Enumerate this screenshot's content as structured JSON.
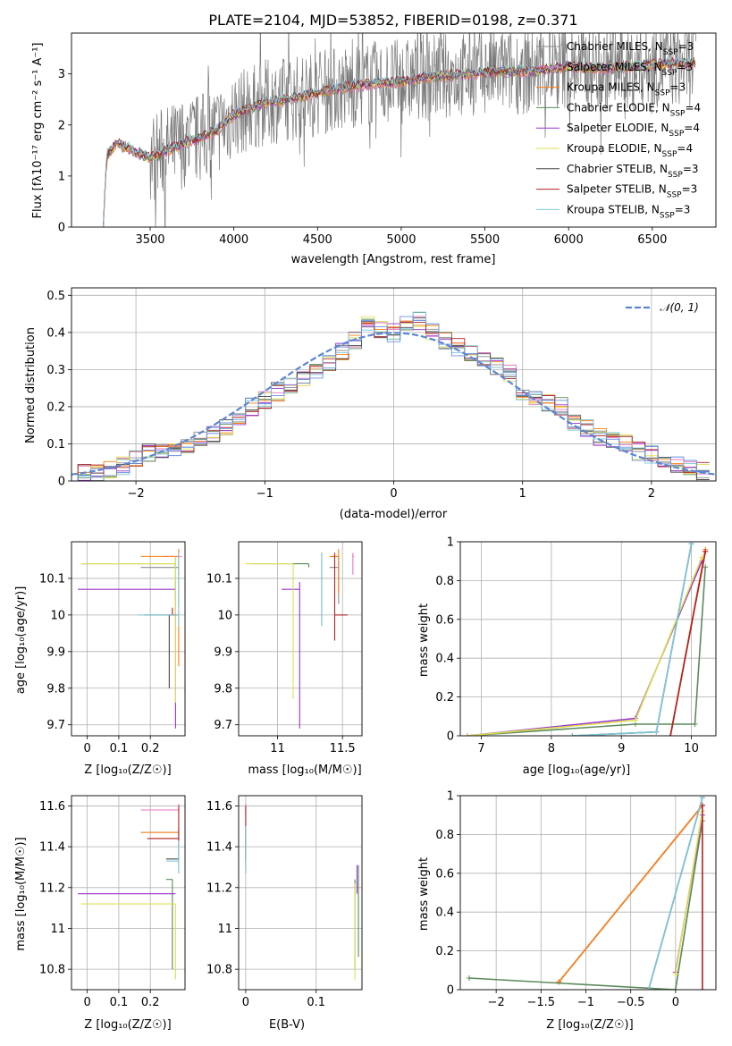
{
  "colors": {
    "chabrier_miles": "#8c8c8c",
    "salpeter_miles": "#e377c2",
    "kroupa_miles": "#ff7f0e",
    "chabrier_elodie": "#5b8a5b",
    "salpeter_elodie": "#9932cc",
    "kroupa_elodie": "#dde050",
    "chabrier_stelib": "#444444",
    "salpeter_stelib": "#b22222",
    "kroupa_stelib": "#7ec8dc",
    "normal_curve": "#5b86d4",
    "hist_blue": "#6b8fe0"
  },
  "chart_data": [
    {
      "id": "spectrum",
      "type": "line",
      "title": "PLATE=2104, MJD=53852, FIBERID=0198, z=0.371",
      "xlabel": "wavelength [Angstrom, rest frame]",
      "ylabel": "Flux [fλ10⁻¹⁷ erg cm⁻² s⁻¹ A⁻¹]",
      "xlim": [
        3030,
        6880
      ],
      "ylim": [
        0,
        3.8
      ],
      "xticks": [
        3500,
        4000,
        4500,
        5000,
        5500,
        6000,
        6500
      ],
      "yticks": [
        0,
        1,
        2,
        3
      ],
      "observed_trend": [
        [
          3220,
          0
        ],
        [
          3240,
          1.4
        ],
        [
          3300,
          1.65
        ],
        [
          3400,
          1.5
        ],
        [
          3500,
          1.35
        ],
        [
          3600,
          1.5
        ],
        [
          3700,
          1.65
        ],
        [
          3800,
          1.75
        ],
        [
          3900,
          1.9
        ],
        [
          4000,
          2.2
        ],
        [
          4200,
          2.45
        ],
        [
          4400,
          2.55
        ],
        [
          4600,
          2.7
        ],
        [
          4800,
          2.8
        ],
        [
          5000,
          2.85
        ],
        [
          5200,
          2.95
        ],
        [
          5400,
          3.0
        ],
        [
          5600,
          3.05
        ],
        [
          5800,
          3.05
        ],
        [
          6000,
          3.15
        ],
        [
          6200,
          3.1
        ],
        [
          6400,
          3.15
        ],
        [
          6600,
          3.2
        ],
        [
          6750,
          3.2
        ]
      ],
      "legend": [
        {
          "label": "Chabrier MILES, N_SSP=3",
          "color_key": "chabrier_miles"
        },
        {
          "label": "Salpeter MILES, N_SSP=3",
          "color_key": "salpeter_miles"
        },
        {
          "label": "Kroupa MILES, N_SSP=3",
          "color_key": "kroupa_miles"
        },
        {
          "label": "Chabrier ELODIE, N_SSP=4",
          "color_key": "chabrier_elodie"
        },
        {
          "label": "Salpeter ELODIE, N_SSP=4",
          "color_key": "salpeter_elodie"
        },
        {
          "label": "Kroupa ELODIE, N_SSP=4",
          "color_key": "kroupa_elodie"
        },
        {
          "label": "Chabrier STELIB, N_SSP=3",
          "color_key": "chabrier_stelib"
        },
        {
          "label": "Salpeter STELIB, N_SSP=3",
          "color_key": "salpeter_stelib"
        },
        {
          "label": "Kroupa STELIB, N_SSP=3",
          "color_key": "kroupa_stelib"
        }
      ],
      "legend_position": "upper right"
    },
    {
      "id": "residuals",
      "type": "line",
      "xlabel": "(data-model)/error",
      "ylabel": "Normed distribution",
      "xlim": [
        -2.5,
        2.5
      ],
      "ylim": [
        0,
        0.52
      ],
      "xticks": [
        -2,
        -1,
        0,
        1,
        2
      ],
      "yticks": [
        0.0,
        0.1,
        0.2,
        0.3,
        0.4,
        0.5
      ],
      "grid": true,
      "curve_label": "𝒩(0, 1)",
      "legend_position": "upper right",
      "histogram_x": [
        -2.4,
        -2.3,
        -2.2,
        -2.1,
        -2.0,
        -1.9,
        -1.8,
        -1.7,
        -1.6,
        -1.5,
        -1.4,
        -1.3,
        -1.2,
        -1.1,
        -1.0,
        -0.9,
        -0.8,
        -0.7,
        -0.6,
        -0.5,
        -0.4,
        -0.3,
        -0.2,
        -0.1,
        0.0,
        0.1,
        0.2,
        0.3,
        0.4,
        0.5,
        0.6,
        0.7,
        0.8,
        0.9,
        1.0,
        1.1,
        1.2,
        1.3,
        1.4,
        1.5,
        1.6,
        1.7,
        1.8,
        1.9,
        2.0,
        2.1,
        2.2,
        2.3,
        2.4
      ],
      "histogram_values": [
        0.02,
        0.025,
        0.03,
        0.04,
        0.06,
        0.075,
        0.08,
        0.09,
        0.1,
        0.115,
        0.125,
        0.14,
        0.17,
        0.2,
        0.22,
        0.24,
        0.26,
        0.28,
        0.3,
        0.32,
        0.35,
        0.38,
        0.42,
        0.41,
        0.4,
        0.42,
        0.43,
        0.4,
        0.38,
        0.36,
        0.34,
        0.33,
        0.31,
        0.29,
        0.24,
        0.22,
        0.21,
        0.2,
        0.16,
        0.14,
        0.12,
        0.11,
        0.1,
        0.08,
        0.07,
        0.055,
        0.045,
        0.035,
        0.025
      ]
    },
    {
      "id": "age_vs_z",
      "type": "scatter",
      "xlabel": "Z [log₁₀(Z/Z☉)]",
      "ylabel": "age  [log₁₀(age/yr)]",
      "xlim": [
        -0.05,
        0.31
      ],
      "ylim": [
        9.67,
        10.2
      ],
      "xticks": [
        0.0,
        0.1,
        0.2
      ],
      "yticks": [
        9.7,
        9.8,
        9.9,
        10.0,
        10.1
      ],
      "points": [
        {
          "key": "chabrier_miles",
          "x": 0.29,
          "y": 10.13,
          "xerr": [
            0.12,
            0.0
          ],
          "yerr": [
            0.1,
            0.03
          ]
        },
        {
          "key": "salpeter_miles",
          "x": 0.29,
          "y": 10.16,
          "xerr": [
            0.05,
            0.01
          ],
          "yerr": [
            0.04,
            0.02
          ]
        },
        {
          "key": "kroupa_miles",
          "x": 0.29,
          "y": 10.16,
          "xerr": [
            0.12,
            0.0
          ],
          "yerr": [
            0.3,
            0.02
          ]
        },
        {
          "key": "chabrier_elodie",
          "x": 0.28,
          "y": 10.14,
          "xerr": [
            0.3,
            0.0
          ],
          "yerr": [
            0.1,
            0.02
          ]
        },
        {
          "key": "salpeter_elodie",
          "x": 0.28,
          "y": 10.07,
          "xerr": [
            0.31,
            0.0
          ],
          "yerr": [
            0.38,
            0.02
          ]
        },
        {
          "key": "kroupa_elodie",
          "x": 0.28,
          "y": 10.14,
          "xerr": [
            0.3,
            0.0
          ],
          "yerr": [
            0.38,
            0.02
          ]
        },
        {
          "key": "chabrier_stelib",
          "x": 0.26,
          "y": 10.0,
          "xerr": [
            0.08,
            0.03
          ],
          "yerr": [
            0.2,
            0.0
          ]
        },
        {
          "key": "salpeter_stelib",
          "x": 0.27,
          "y": 10.0,
          "xerr": [
            0.01,
            0.01
          ],
          "yerr": [
            0.0,
            0.02
          ]
        },
        {
          "key": "kroupa_stelib",
          "x": 0.29,
          "y": 10.0,
          "xerr": [
            0.13,
            0.0
          ],
          "yerr": [
            0.03,
            0.17
          ]
        }
      ]
    },
    {
      "id": "age_vs_mass",
      "type": "scatter",
      "xlabel": "mass [log₁₀(M/M☉)]",
      "ylabel": "",
      "xlim": [
        10.7,
        11.65
      ],
      "ylim": [
        9.67,
        10.2
      ],
      "xticks": [
        11.0,
        11.5
      ],
      "yticks": [
        9.7,
        9.8,
        9.9,
        10.0,
        10.1
      ],
      "points": [
        {
          "key": "chabrier_miles",
          "x": 11.47,
          "y": 10.13,
          "xerr": [
            0.07,
            0.0
          ],
          "yerr": [
            0.1,
            0.03
          ]
        },
        {
          "key": "salpeter_miles",
          "x": 11.58,
          "y": 10.16,
          "xerr": [
            0.0,
            0.01
          ],
          "yerr": [
            0.05,
            0.01
          ]
        },
        {
          "key": "kroupa_miles",
          "x": 11.47,
          "y": 10.16,
          "xerr": [
            0.07,
            0.0
          ],
          "yerr": [
            0.1,
            0.02
          ]
        },
        {
          "key": "chabrier_elodie",
          "x": 11.24,
          "y": 10.14,
          "xerr": [
            0.45,
            0.0
          ],
          "yerr": [
            0.01,
            0.0
          ]
        },
        {
          "key": "salpeter_elodie",
          "x": 11.17,
          "y": 10.07,
          "xerr": [
            0.14,
            0.0
          ],
          "yerr": [
            0.38,
            0.02
          ]
        },
        {
          "key": "kroupa_elodie",
          "x": 11.12,
          "y": 10.14,
          "xerr": [
            0.37,
            0.0
          ],
          "yerr": [
            0.37,
            0.0
          ]
        },
        {
          "key": "chabrier_stelib",
          "x": 11.34,
          "y": 10.0,
          "xerr": [
            0.0,
            0.0
          ],
          "yerr": [
            0.03,
            0.17
          ]
        },
        {
          "key": "salpeter_stelib",
          "x": 11.44,
          "y": 10.0,
          "xerr": [
            0.0,
            0.1
          ],
          "yerr": [
            0.07,
            0.17
          ]
        },
        {
          "key": "kroupa_stelib",
          "x": 11.34,
          "y": 10.0,
          "xerr": [
            0.0,
            0.0
          ],
          "yerr": [
            0.03,
            0.17
          ]
        }
      ]
    },
    {
      "id": "weight_vs_age",
      "type": "line",
      "xlabel": "age  [log₁₀(age/yr)]",
      "ylabel": "mass weight",
      "xlim": [
        6.7,
        10.35
      ],
      "ylim": [
        0,
        1.0
      ],
      "xticks": [
        7,
        8,
        9,
        10
      ],
      "yticks": [
        0.0,
        0.2,
        0.4,
        0.6,
        0.8,
        1.0
      ],
      "grid": true,
      "series": [
        {
          "key": "chabrier_miles",
          "x": [
            9.7,
            10.2
          ],
          "y": [
            0.0,
            0.95
          ]
        },
        {
          "key": "salpeter_miles",
          "x": [
            9.7,
            10.2
          ],
          "y": [
            0.0,
            0.95
          ]
        },
        {
          "key": "kroupa_miles",
          "x": [
            9.7,
            10.2
          ],
          "y": [
            0.0,
            0.96
          ]
        },
        {
          "key": "chabrier_elodie",
          "x": [
            6.8,
            9.2,
            10.05,
            10.2
          ],
          "y": [
            0.0,
            0.06,
            0.06,
            0.87
          ]
        },
        {
          "key": "salpeter_elodie",
          "x": [
            6.8,
            9.2,
            10.15
          ],
          "y": [
            0.0,
            0.09,
            0.9
          ]
        },
        {
          "key": "kroupa_elodie",
          "x": [
            6.8,
            9.2,
            10.15
          ],
          "y": [
            0.0,
            0.08,
            0.92
          ]
        },
        {
          "key": "chabrier_stelib",
          "x": [
            8.3,
            9.5,
            10.0
          ],
          "y": [
            0.0,
            0.02,
            0.99
          ]
        },
        {
          "key": "salpeter_stelib",
          "x": [
            9.7,
            10.2
          ],
          "y": [
            0.0,
            0.95
          ]
        },
        {
          "key": "kroupa_stelib",
          "x": [
            8.3,
            9.5,
            10.0
          ],
          "y": [
            0.0,
            0.02,
            0.99
          ]
        }
      ]
    },
    {
      "id": "mass_vs_z",
      "type": "scatter",
      "xlabel": "Z [log₁₀(Z/Z☉)]",
      "ylabel": "mass [log₁₀(M/M☉)]",
      "xlim": [
        -0.05,
        0.31
      ],
      "ylim": [
        10.7,
        11.65
      ],
      "xticks": [
        0.0,
        0.1,
        0.2
      ],
      "yticks": [
        10.8,
        11.0,
        11.2,
        11.4,
        11.6
      ],
      "points": [
        {
          "key": "chabrier_miles",
          "x": 0.29,
          "y": 11.47,
          "xerr": [
            0.12,
            0.0
          ],
          "yerr": [
            0.17,
            0.02
          ]
        },
        {
          "key": "salpeter_miles",
          "x": 0.29,
          "y": 11.58,
          "xerr": [
            0.12,
            0.0
          ],
          "yerr": [
            0.02,
            0.03
          ]
        },
        {
          "key": "kroupa_miles",
          "x": 0.29,
          "y": 11.47,
          "xerr": [
            0.12,
            0.0
          ],
          "yerr": [
            0.2,
            0.02
          ]
        },
        {
          "key": "chabrier_elodie",
          "x": 0.27,
          "y": 11.24,
          "xerr": [
            0.02,
            0.0
          ],
          "yerr": [
            0.44,
            0.0
          ]
        },
        {
          "key": "salpeter_elodie",
          "x": 0.28,
          "y": 11.17,
          "xerr": [
            0.31,
            0.0
          ],
          "yerr": [
            0.0,
            0.0
          ]
        },
        {
          "key": "kroupa_elodie",
          "x": 0.28,
          "y": 11.12,
          "xerr": [
            0.3,
            0.0
          ],
          "yerr": [
            0.37,
            0.0
          ]
        },
        {
          "key": "chabrier_stelib",
          "x": 0.29,
          "y": 11.34,
          "xerr": [
            0.04,
            0.0
          ],
          "yerr": [
            0.0,
            0.0
          ]
        },
        {
          "key": "salpeter_stelib",
          "x": 0.29,
          "y": 11.44,
          "xerr": [
            0.1,
            0.0
          ],
          "yerr": [
            0.1,
            0.16
          ]
        },
        {
          "key": "kroupa_stelib",
          "x": 0.29,
          "y": 11.33,
          "xerr": [
            0.04,
            0.0
          ],
          "yerr": [
            0.06,
            0.1
          ]
        }
      ]
    },
    {
      "id": "mass_vs_ebv",
      "type": "scatter",
      "xlabel": "E(B-V)",
      "ylabel": "",
      "xlim": [
        -0.01,
        0.165
      ],
      "ylim": [
        10.7,
        11.65
      ],
      "xticks": [
        0.0,
        0.1
      ],
      "yticks": [
        10.8,
        11.0,
        11.2,
        11.4,
        11.6
      ],
      "points": [
        {
          "key": "chabrier_miles",
          "x": 0.0,
          "y": 11.47,
          "xerr": [
            0.0,
            0.0
          ],
          "yerr": [
            0.17,
            0.02
          ]
        },
        {
          "key": "salpeter_miles",
          "x": 0.0,
          "y": 11.58,
          "xerr": [
            0.0,
            0.0
          ],
          "yerr": [
            0.02,
            0.03
          ]
        },
        {
          "key": "kroupa_miles",
          "x": 0.0,
          "y": 11.47,
          "xerr": [
            0.0,
            0.0
          ],
          "yerr": [
            0.2,
            0.02
          ]
        },
        {
          "key": "chabrier_elodie",
          "x": 0.155,
          "y": 11.0,
          "xerr": [
            0.0,
            0.0
          ],
          "yerr": [
            0.2,
            0.24
          ]
        },
        {
          "key": "salpeter_elodie",
          "x": 0.158,
          "y": 11.17,
          "xerr": [
            0.0,
            0.0
          ],
          "yerr": [
            0.0,
            0.14
          ]
        },
        {
          "key": "kroupa_elodie",
          "x": 0.155,
          "y": 11.0,
          "xerr": [
            0.0,
            0.0
          ],
          "yerr": [
            0.25,
            0.22
          ]
        },
        {
          "key": "chabrier_stelib",
          "x": 0.0,
          "y": 11.34,
          "xerr": [
            0.0,
            0.0
          ],
          "yerr": [
            0.0,
            0.0
          ]
        },
        {
          "key": "salpeter_stelib",
          "x": 0.0,
          "y": 11.44,
          "xerr": [
            0.0,
            0.0
          ],
          "yerr": [
            0.1,
            0.16
          ]
        },
        {
          "key": "kroupa_stelib",
          "x": 0.0,
          "y": 11.33,
          "xerr": [
            0.0,
            0.0
          ],
          "yerr": [
            0.06,
            0.17
          ]
        },
        {
          "key": "chabrier_elodie",
          "x": 0.16,
          "y": 11.1,
          "xerr": [
            0.0,
            0.0
          ],
          "yerr": [
            0.24,
            0.21
          ]
        }
      ]
    },
    {
      "id": "weight_vs_z",
      "type": "line",
      "xlabel": "Z [log₁₀(Z/Z☉)]",
      "ylabel": "mass weight",
      "xlim": [
        -2.4,
        0.45
      ],
      "ylim": [
        0,
        1.0
      ],
      "xticks": [
        -2.0,
        -1.5,
        -1.0,
        -0.5,
        0.0
      ],
      "yticks": [
        0.0,
        0.2,
        0.4,
        0.6,
        0.8,
        1.0
      ],
      "grid": true,
      "series": [
        {
          "key": "chabrier_miles",
          "x": [
            -1.3,
            0.3
          ],
          "y": [
            0.04,
            0.95
          ]
        },
        {
          "key": "salpeter_miles",
          "x": [
            -1.3,
            0.3
          ],
          "y": [
            0.04,
            0.95
          ]
        },
        {
          "key": "kroupa_miles",
          "x": [
            -1.3,
            0.3
          ],
          "y": [
            0.04,
            0.95
          ]
        },
        {
          "key": "chabrier_elodie",
          "x": [
            -2.3,
            0.0,
            0.3
          ],
          "y": [
            0.06,
            0.0,
            0.87
          ]
        },
        {
          "key": "salpeter_elodie",
          "x": [
            0.0,
            0.3
          ],
          "y": [
            0.09,
            0.9
          ]
        },
        {
          "key": "kroupa_elodie",
          "x": [
            0.0,
            0.3
          ],
          "y": [
            0.08,
            0.92
          ]
        },
        {
          "key": "chabrier_stelib",
          "x": [
            -0.3,
            0.3
          ],
          "y": [
            0.0,
            0.99
          ]
        },
        {
          "key": "salpeter_stelib",
          "x": [
            0.3,
            0.3
          ],
          "y": [
            0.0,
            0.95
          ]
        },
        {
          "key": "kroupa_stelib",
          "x": [
            -0.3,
            0.3
          ],
          "y": [
            0.0,
            0.99
          ]
        }
      ]
    }
  ]
}
